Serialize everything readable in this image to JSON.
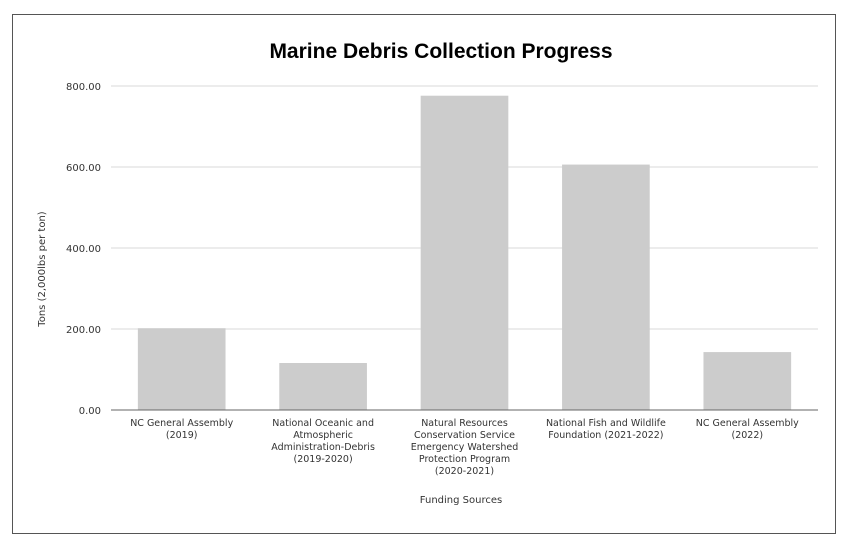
{
  "chart_data": {
    "type": "bar",
    "title": "Marine Debris Collection Progress",
    "xlabel": "Funding Sources",
    "ylabel": "Tons (2,000lbs per ton)",
    "ylim": [
      0,
      800
    ],
    "yticks": [
      "0.00",
      "200.00",
      "400.00",
      "600.00",
      "800.00"
    ],
    "ytick_values": [
      0,
      200,
      400,
      600,
      800
    ],
    "grid": true,
    "bar_color": "#cccccc",
    "categories": [
      [
        "NC General Assembly",
        "(2019)"
      ],
      [
        "National Oceanic and",
        "Atmospheric",
        "Administration-Debris",
        "(2019-2020)"
      ],
      [
        "Natural Resources",
        "Conservation Service",
        "Emergency Watershed",
        "Protection Program",
        "(2020-2021)"
      ],
      [
        "National Fish and Wildlife",
        "Foundation (2021-2022)"
      ],
      [
        "NC General Assembly",
        "(2022)"
      ]
    ],
    "values": [
      202,
      116,
      776,
      606,
      143
    ]
  }
}
